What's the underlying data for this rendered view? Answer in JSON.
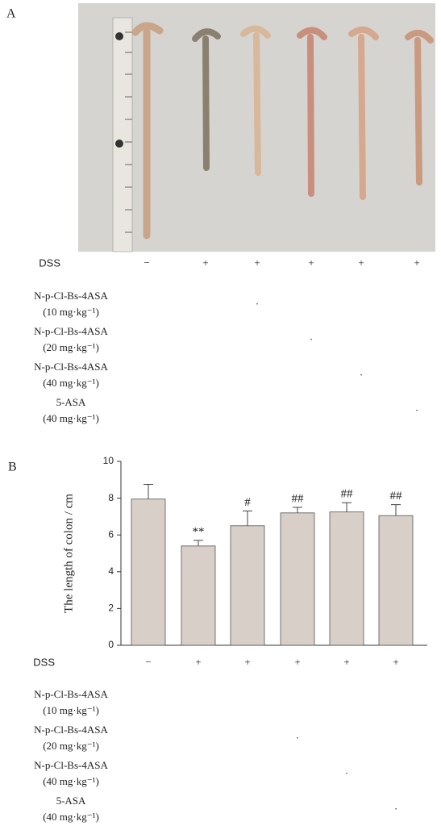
{
  "panel_a": {
    "label": "A",
    "treatments": [
      {
        "label": "DSS",
        "marks": [
          "−",
          "+",
          "+",
          "+",
          "+",
          "+"
        ]
      },
      {
        "label": "N-p-Cl-Bs-4ASA",
        "dose": "(10 mg·kg⁻¹)",
        "marks": [
          null,
          null,
          "·",
          null,
          null,
          null
        ]
      },
      {
        "label": "N-p-Cl-Bs-4ASA",
        "dose": "(20 mg·kg⁻¹)",
        "marks": [
          null,
          null,
          null,
          "·",
          null,
          null
        ]
      },
      {
        "label": "N-p-Cl-Bs-4ASA",
        "dose": "(40 mg·kg⁻¹)",
        "marks": [
          null,
          null,
          null,
          null,
          "·",
          null
        ]
      },
      {
        "label": "5-ASA",
        "dose": "(40 mg·kg⁻¹)",
        "marks": [
          null,
          null,
          null,
          null,
          null,
          "·"
        ]
      }
    ]
  },
  "panel_b": {
    "label": "B",
    "treatments": [
      {
        "label": "DSS",
        "marks": [
          "−",
          "+",
          "+",
          "+",
          "+",
          "+"
        ]
      },
      {
        "label": "N-p-Cl-Bs-4ASA",
        "dose": "(10 mg·kg⁻¹)",
        "marks": [
          null,
          null,
          null,
          null,
          null,
          null
        ]
      },
      {
        "label": "N-p-Cl-Bs-4ASA",
        "dose": "(20 mg·kg⁻¹)",
        "marks": [
          null,
          null,
          null,
          "·",
          null,
          null
        ]
      },
      {
        "label": "N-p-Cl-Bs-4ASA",
        "dose": "(40 mg·kg⁻¹)",
        "marks": [
          null,
          null,
          null,
          null,
          "·",
          null
        ]
      },
      {
        "label": "5-ASA",
        "dose": "(40 mg·kg⁻¹)",
        "marks": [
          null,
          null,
          null,
          null,
          null,
          "·"
        ]
      }
    ]
  },
  "chart_data": {
    "type": "bar",
    "y_label": "The length of colon / cm",
    "categories": [
      null,
      null,
      null,
      null,
      null,
      null
    ],
    "values": [
      7.95,
      5.4,
      6.5,
      7.2,
      7.25,
      7.05
    ],
    "errors": [
      0.8,
      0.3,
      0.8,
      0.3,
      0.5,
      0.6
    ],
    "annotations": [
      null,
      "**",
      "#",
      "##",
      "##",
      "##"
    ],
    "color": "#d8cfc8",
    "ylim": [
      0,
      10
    ],
    "yticks": [
      0,
      2,
      4,
      6,
      8,
      10
    ]
  }
}
